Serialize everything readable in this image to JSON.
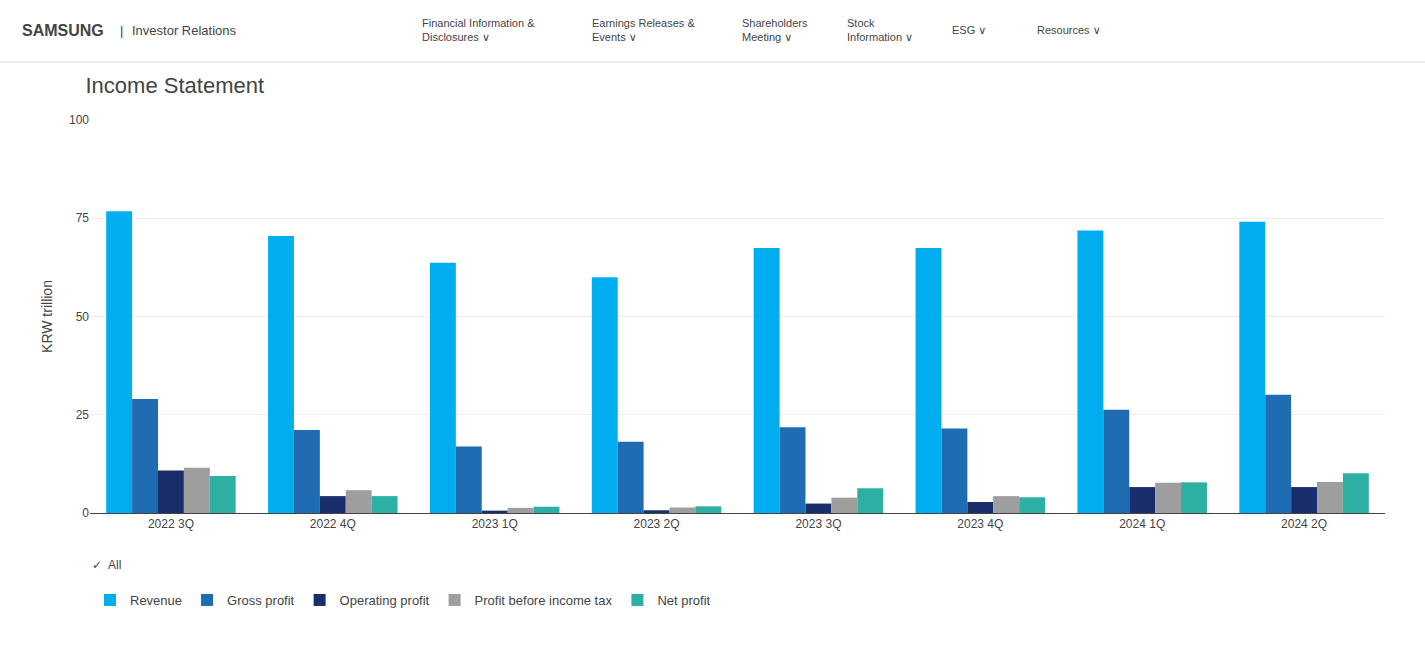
{
  "chart_data": {
    "type": "bar",
    "title": "Income Statement",
    "ylabel": "KRW trillion",
    "annotations": [
      "SAMSUNG",
      "|",
      "Investor Relations",
      "Financial Information &\nDisclosures ∨",
      "Earnings Releases &\nEvents ∨",
      "Shareholders\nMeeting ∨",
      "Stock\nInformation ∨",
      "ESG ∨",
      "Resources ∨",
      "✓  All"
    ],
    "categories": [
      "2022 3Q",
      "2022 4Q",
      "2023 1Q",
      "2023 2Q",
      "2023 3Q",
      "2023 4Q",
      "2024 1Q",
      "2024 2Q"
    ],
    "series": [
      {
        "name": "Revenue",
        "color": "#00AEEF",
        "values": [
          76.8,
          70.5,
          63.7,
          60.0,
          67.4,
          67.4,
          71.9,
          74.1
        ]
      },
      {
        "name": "Gross profit",
        "color": "#1F6CB2",
        "values": [
          29.0,
          21.1,
          16.9,
          18.1,
          21.8,
          21.5,
          26.3,
          30.1
        ]
      },
      {
        "name": "Operating profit",
        "color": "#1A2E6C",
        "values": [
          10.8,
          4.3,
          0.6,
          0.7,
          2.4,
          2.8,
          6.6,
          6.6
        ]
      },
      {
        "name": "Profit before income tax",
        "color": "#9E9E9E",
        "values": [
          11.5,
          5.8,
          1.3,
          1.4,
          3.9,
          4.3,
          7.7,
          7.9
        ]
      },
      {
        "name": "Net profit",
        "color": "#2EAFA4",
        "values": [
          9.4,
          4.3,
          1.6,
          1.7,
          6.3,
          4.0,
          7.8,
          10.1
        ]
      }
    ],
    "ylim": [
      0,
      100
    ],
    "yticks": [
      0,
      25,
      50,
      75,
      100
    ],
    "grid": true
  }
}
